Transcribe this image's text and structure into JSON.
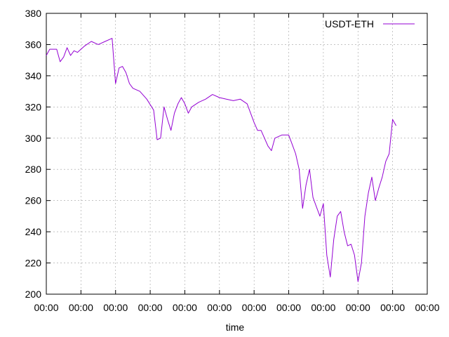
{
  "chart_data": {
    "type": "line",
    "title": "",
    "xlabel": "time",
    "ylabel": "",
    "ylim": [
      200,
      380
    ],
    "yticks": [
      200,
      220,
      240,
      260,
      280,
      300,
      320,
      340,
      360,
      380
    ],
    "xticks": [
      "00:00",
      "00:00",
      "00:00",
      "00:00",
      "00:00",
      "00:00",
      "00:00",
      "00:00",
      "00:00",
      "00:00",
      "00:00",
      "00:00"
    ],
    "xlim": [
      0,
      11
    ],
    "grid": true,
    "legend": "top-right",
    "series": [
      {
        "name": "USDT-ETH",
        "color": "#9400d3",
        "x": [
          0.0,
          0.1,
          0.3,
          0.4,
          0.5,
          0.6,
          0.7,
          0.8,
          0.9,
          1.0,
          1.1,
          1.3,
          1.5,
          1.7,
          1.9,
          2.0,
          2.1,
          2.2,
          2.3,
          2.4,
          2.5,
          2.7,
          2.9,
          3.1,
          3.2,
          3.3,
          3.4,
          3.5,
          3.6,
          3.7,
          3.8,
          3.9,
          4.0,
          4.1,
          4.2,
          4.4,
          4.6,
          4.8,
          5.0,
          5.2,
          5.4,
          5.6,
          5.8,
          6.0,
          6.1,
          6.2,
          6.3,
          6.4,
          6.5,
          6.6,
          6.8,
          7.0,
          7.1,
          7.2,
          7.3,
          7.4,
          7.5,
          7.6,
          7.7,
          7.8,
          7.9,
          8.0,
          8.1,
          8.2,
          8.3,
          8.4,
          8.5,
          8.6,
          8.7,
          8.8,
          8.9,
          9.0,
          9.1,
          9.2,
          9.3,
          9.4,
          9.5,
          9.6,
          9.7,
          9.8,
          9.9,
          10.0,
          10.1
        ],
        "values": [
          353,
          357,
          357,
          349,
          352,
          358,
          353,
          356,
          355,
          357,
          359,
          362,
          360,
          362,
          364,
          335,
          345,
          346,
          342,
          335,
          332,
          330,
          325,
          318,
          299,
          300,
          320,
          312,
          305,
          316,
          322,
          326,
          322,
          316,
          320,
          323,
          325,
          328,
          326,
          325,
          324,
          325,
          322,
          310,
          305,
          305,
          300,
          295,
          292,
          300,
          302,
          302,
          296,
          290,
          280,
          255,
          270,
          280,
          262,
          256,
          250,
          258,
          225,
          211,
          235,
          250,
          253,
          240,
          231,
          232,
          225,
          208,
          220,
          250,
          265,
          275,
          260,
          268,
          275,
          285,
          290,
          312,
          308
        ]
      }
    ]
  }
}
